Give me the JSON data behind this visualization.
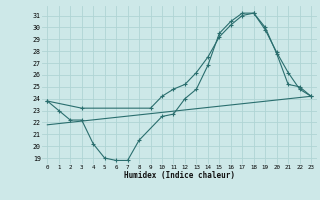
{
  "title": "",
  "xlabel": "Humidex (Indice chaleur)",
  "bg_color": "#cde8e8",
  "grid_color": "#b0d4d4",
  "line_color": "#2a6e6e",
  "xlim": [
    -0.5,
    23.5
  ],
  "ylim": [
    18.5,
    31.8
  ],
  "yticks": [
    19,
    20,
    21,
    22,
    23,
    24,
    25,
    26,
    27,
    28,
    29,
    30,
    31
  ],
  "xticks": [
    0,
    1,
    2,
    3,
    4,
    5,
    6,
    7,
    8,
    9,
    10,
    11,
    12,
    13,
    14,
    15,
    16,
    17,
    18,
    19,
    20,
    21,
    22,
    23
  ],
  "curve1_x": [
    0,
    1,
    2,
    3,
    4,
    5,
    6,
    7,
    8,
    10,
    11,
    12,
    13,
    14,
    15,
    16,
    17,
    18,
    19,
    20,
    21,
    22,
    23
  ],
  "curve1_y": [
    23.8,
    23.0,
    22.2,
    22.2,
    20.2,
    19.0,
    18.8,
    18.8,
    20.5,
    22.5,
    22.7,
    24.0,
    24.8,
    26.8,
    29.5,
    30.5,
    31.2,
    31.2,
    29.8,
    27.9,
    26.2,
    24.8,
    24.2
  ],
  "curve2_x": [
    0,
    3,
    9,
    10,
    11,
    12,
    13,
    14,
    15,
    16,
    17,
    18,
    19,
    20,
    21,
    22,
    23
  ],
  "curve2_y": [
    23.8,
    23.2,
    23.2,
    24.2,
    24.8,
    25.2,
    26.2,
    27.5,
    29.2,
    30.2,
    31.0,
    31.2,
    30.0,
    27.8,
    25.2,
    25.0,
    24.2
  ],
  "curve3_x": [
    0,
    23
  ],
  "curve3_y": [
    21.8,
    24.2
  ]
}
